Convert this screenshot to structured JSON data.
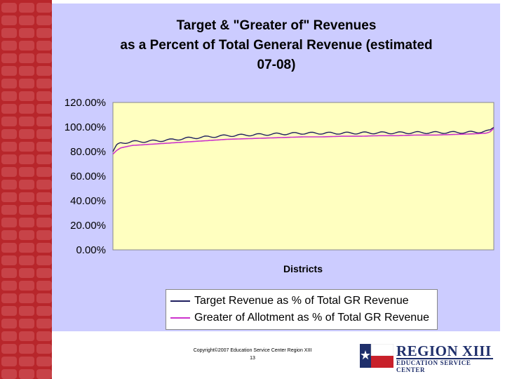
{
  "chart_data": {
    "type": "line",
    "title_lines": [
      "Target & \"Greater of\" Revenues",
      "as a Percent of Total General Revenue (estimated",
      "07-08)"
    ],
    "xlabel": "Districts",
    "ylabel": "",
    "yticks": [
      "0.00%",
      "20.00%",
      "40.00%",
      "60.00%",
      "80.00%",
      "100.00%",
      "120.00%"
    ],
    "ylim": [
      0,
      120
    ],
    "grid": false,
    "legend_position": "bottom",
    "series": [
      {
        "name": "Target Revenue as % of  Total GR Revenue",
        "color": "#1f1f5f",
        "x_fraction": [
          0,
          0.01,
          0.02,
          0.05,
          0.1,
          0.15,
          0.2,
          0.25,
          0.3,
          0.35,
          0.4,
          0.45,
          0.5,
          0.55,
          0.6,
          0.65,
          0.7,
          0.75,
          0.8,
          0.85,
          0.9,
          0.95,
          0.98,
          0.99,
          1.0
        ],
        "values": [
          80,
          85,
          87,
          88,
          88.5,
          89.5,
          91,
          92,
          93,
          93.5,
          94,
          94.5,
          95,
          95,
          95,
          95.2,
          95.3,
          95.3,
          95.5,
          95.5,
          95.6,
          95.8,
          96.5,
          97,
          100
        ]
      },
      {
        "name": "Greater of  Allotment as % of  Total GR Revenue",
        "color": "#cc33cc",
        "x_fraction": [
          0,
          0.01,
          0.02,
          0.05,
          0.1,
          0.15,
          0.2,
          0.25,
          0.3,
          0.35,
          0.4,
          0.45,
          0.5,
          0.55,
          0.6,
          0.65,
          0.7,
          0.75,
          0.8,
          0.85,
          0.9,
          0.95,
          0.98,
          0.99,
          1.0
        ],
        "values": [
          78,
          81,
          83,
          85,
          86,
          87,
          88,
          89,
          90,
          90.5,
          91,
          91.5,
          92,
          92,
          92.5,
          92.5,
          93,
          93,
          93.5,
          93.5,
          94,
          94.5,
          95,
          96,
          99
        ]
      }
    ]
  },
  "footer": {
    "copyright": "Copyright©2007 Education Service Center Region XIII",
    "page_number": "13"
  },
  "logo": {
    "line1": "REGION XIII",
    "line2": "EDUCATION SERVICE CENTER"
  },
  "colors": {
    "chart_background": "#ccccff",
    "plot_background": "#ffffc0",
    "left_band": "#b8262b"
  }
}
